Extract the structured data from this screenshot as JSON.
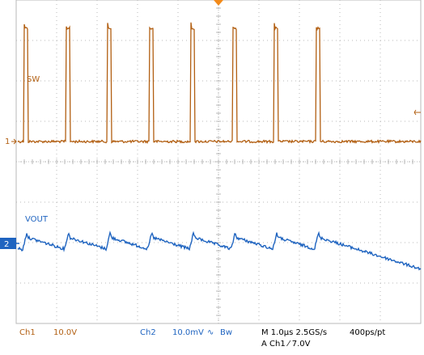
{
  "colors": {
    "background": "#ffffff",
    "grid": "#b9b9b9",
    "ch1": "#b25f12",
    "ch2": "#1f64c0",
    "trigger_marker": "#f28a1a",
    "ch2_marker_bg": "#1f64c0"
  },
  "chart_data": {
    "type": "line",
    "grid": true,
    "x_divisions": 10,
    "y_divisions": 8,
    "x_unit": "µs",
    "x_range": [
      0,
      10
    ],
    "series": [
      {
        "name": "SW",
        "channel_marker": "1",
        "scale": "10.0V/div",
        "pulse_level_div": 2.8,
        "base_level_div": 0.0,
        "pulse_starts_us": [
          0.2,
          1.23,
          2.26,
          3.29,
          4.32,
          5.35,
          6.38,
          7.41
        ],
        "pulse_width_us": 0.1
      },
      {
        "name": "VOUT",
        "channel_marker": "2",
        "scale": "10.0mV/div",
        "waveform": "sawtooth ripple",
        "ripple_peak_times_us": [
          0.26,
          1.29,
          2.32,
          3.35,
          4.38,
          5.41,
          6.44,
          7.47
        ]
      }
    ]
  },
  "status": {
    "ch1": "Ch1",
    "ch1_scale": "10.0V",
    "ch2": "Ch2",
    "ch2_scale": "10.0mV",
    "ch2_bw_symbol": "∿",
    "bw": "Bw",
    "timebase": "M 1.0µs 2.5GS/s",
    "record": "400ps/pt",
    "trigger": "A  Ch1  ⁄  7.0V"
  }
}
